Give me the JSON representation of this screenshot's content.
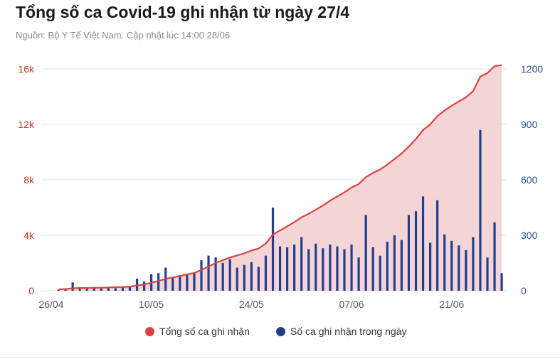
{
  "header": {
    "title": "Tổng số ca Covid-19 ghi nhận từ ngày 27/4",
    "subtitle": "Nguồn: Bộ Y Tế Việt Nam. Cập nhật lúc 14:00 28/06"
  },
  "legend": {
    "total_label": "Tổng số ca ghi nhận",
    "daily_label": "Số ca ghi nhận trong ngày"
  },
  "colors": {
    "total_line": "#d64541",
    "total_area": "#f2cccc",
    "daily_bar": "#1f3f91",
    "left_axis": "#c0392b",
    "right_axis": "#2c4d8f",
    "grid": "#e0e0e0"
  },
  "chart_data": {
    "type": "bar",
    "title": "Tổng số ca Covid-19 ghi nhận từ ngày 27/4",
    "x_tick_labels": [
      "26/04",
      "10/05",
      "24/05",
      "07/06",
      "21/06"
    ],
    "x_tick_day_index": [
      -1,
      13,
      27,
      41,
      55
    ],
    "left_axis": {
      "ticks": [
        "0",
        "4k",
        "8k",
        "12k",
        "16k"
      ],
      "range": [
        0,
        16000
      ]
    },
    "right_axis": {
      "ticks": [
        "0",
        "300",
        "600",
        "900",
        "1200"
      ],
      "range": [
        0,
        1200
      ]
    },
    "legend_position": "bottom",
    "grid": true,
    "series": [
      {
        "name": "Số ca ghi nhận trong ngày",
        "type": "bar",
        "axis": "right",
        "start_date": "27/04",
        "values": [
          5,
          8,
          45,
          15,
          10,
          12,
          12,
          15,
          14,
          20,
          22,
          65,
          50,
          90,
          95,
          125,
          75,
          85,
          85,
          100,
          165,
          190,
          180,
          150,
          170,
          125,
          140,
          155,
          130,
          190,
          450,
          240,
          235,
          250,
          290,
          225,
          255,
          230,
          250,
          240,
          225,
          250,
          180,
          410,
          235,
          190,
          265,
          300,
          275,
          410,
          430,
          510,
          260,
          490,
          305,
          270,
          245,
          220,
          290,
          870,
          180,
          370,
          95
        ]
      },
      {
        "name": "Tổng số ca ghi nhận",
        "type": "area",
        "axis": "left",
        "values": [
          100,
          120,
          180,
          200,
          200,
          210,
          220,
          240,
          260,
          270,
          300,
          380,
          450,
          580,
          700,
          860,
          960,
          1060,
          1180,
          1280,
          1500,
          1750,
          2000,
          2200,
          2400,
          2550,
          2700,
          2900,
          3050,
          3400,
          4050,
          4350,
          4650,
          4950,
          5300,
          5550,
          5850,
          6150,
          6500,
          6800,
          7100,
          7450,
          7700,
          8200,
          8500,
          8750,
          9100,
          9500,
          9900,
          10400,
          10950,
          11600,
          12000,
          12600,
          13000,
          13350,
          13650,
          13950,
          14400,
          15450,
          15700,
          16200,
          16280
        ]
      }
    ]
  }
}
